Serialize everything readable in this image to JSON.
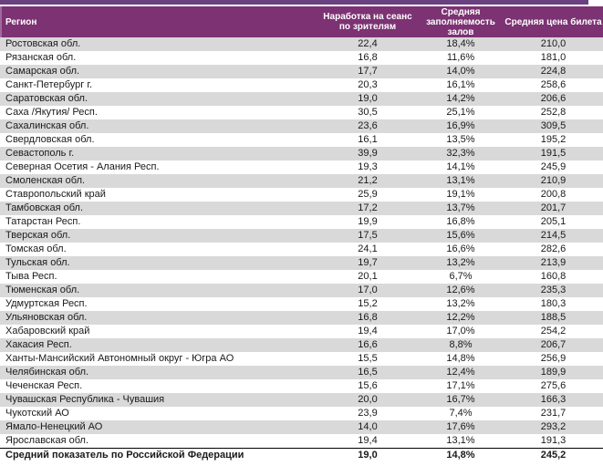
{
  "table": {
    "columns": [
      "Регион",
      "Наработка на сеанс по зрителям",
      "Средняя заполняемость залов",
      "Средняя цена билета"
    ],
    "rows": [
      {
        "region": "Ростовская обл.",
        "per_session": "22,4",
        "occupancy": "18,4%",
        "price": "210,0"
      },
      {
        "region": "Рязанская обл.",
        "per_session": "16,8",
        "occupancy": "11,6%",
        "price": "181,0"
      },
      {
        "region": "Самарская обл.",
        "per_session": "17,7",
        "occupancy": "14,0%",
        "price": "224,8"
      },
      {
        "region": "Санкт-Петербург г.",
        "per_session": "20,3",
        "occupancy": "16,1%",
        "price": "258,6"
      },
      {
        "region": "Саратовская обл.",
        "per_session": "19,0",
        "occupancy": "14,2%",
        "price": "206,6"
      },
      {
        "region": "Саха /Якутия/ Респ.",
        "per_session": "30,5",
        "occupancy": "25,1%",
        "price": "252,8"
      },
      {
        "region": "Сахалинская обл.",
        "per_session": "23,6",
        "occupancy": "16,9%",
        "price": "309,5"
      },
      {
        "region": "Свердловская обл.",
        "per_session": "16,1",
        "occupancy": "13,5%",
        "price": "195,2"
      },
      {
        "region": "Севастополь г.",
        "per_session": "39,9",
        "occupancy": "32,3%",
        "price": "191,5"
      },
      {
        "region": "Северная Осетия - Алания Респ.",
        "per_session": "19,3",
        "occupancy": "14,1%",
        "price": "245,9"
      },
      {
        "region": "Смоленская обл.",
        "per_session": "21,2",
        "occupancy": "13,1%",
        "price": "210,9"
      },
      {
        "region": "Ставропольский край",
        "per_session": "25,9",
        "occupancy": "19,1%",
        "price": "200,8"
      },
      {
        "region": "Тамбовская обл.",
        "per_session": "17,2",
        "occupancy": "13,7%",
        "price": "201,7"
      },
      {
        "region": "Татарстан Респ.",
        "per_session": "19,9",
        "occupancy": "16,8%",
        "price": "205,1"
      },
      {
        "region": "Тверская обл.",
        "per_session": "17,5",
        "occupancy": "15,6%",
        "price": "214,5"
      },
      {
        "region": "Томская обл.",
        "per_session": "24,1",
        "occupancy": "16,6%",
        "price": "282,6"
      },
      {
        "region": "Тульская обл.",
        "per_session": "19,7",
        "occupancy": "13,2%",
        "price": "213,9"
      },
      {
        "region": "Тыва Респ.",
        "per_session": "20,1",
        "occupancy": "6,7%",
        "price": "160,8"
      },
      {
        "region": "Тюменская обл.",
        "per_session": "17,0",
        "occupancy": "12,6%",
        "price": "235,3"
      },
      {
        "region": "Удмуртская Респ.",
        "per_session": "15,2",
        "occupancy": "13,2%",
        "price": "180,3"
      },
      {
        "region": "Ульяновская обл.",
        "per_session": "16,8",
        "occupancy": "12,2%",
        "price": "188,5"
      },
      {
        "region": "Хабаровский край",
        "per_session": "19,4",
        "occupancy": "17,0%",
        "price": "254,2"
      },
      {
        "region": "Хакасия Респ.",
        "per_session": "16,6",
        "occupancy": "8,8%",
        "price": "206,7"
      },
      {
        "region": "Ханты-Мансийский Автономный округ - Югра АО",
        "per_session": "15,5",
        "occupancy": "14,8%",
        "price": "256,9"
      },
      {
        "region": "Челябинская обл.",
        "per_session": "16,5",
        "occupancy": "12,4%",
        "price": "189,9"
      },
      {
        "region": "Чеченская Респ.",
        "per_session": "15,6",
        "occupancy": "17,1%",
        "price": "275,6"
      },
      {
        "region": "Чувашская Республика - Чувашия",
        "per_session": "20,0",
        "occupancy": "16,7%",
        "price": "166,3"
      },
      {
        "region": "Чукотский АО",
        "per_session": "23,9",
        "occupancy": "7,4%",
        "price": "231,7"
      },
      {
        "region": "Ямало-Ненецкий АО",
        "per_session": "14,0",
        "occupancy": "17,6%",
        "price": "293,2"
      },
      {
        "region": "Ярославская обл.",
        "per_session": "19,4",
        "occupancy": "13,1%",
        "price": "191,3"
      }
    ],
    "summary_row": {
      "region": "Средний показатель по Российской Федерации",
      "per_session": "19,0",
      "occupancy": "14,8%",
      "price": "245,2"
    }
  },
  "colors": {
    "top_strip": "#694080",
    "header_bg": "#7C3273",
    "header_text": "#FFFFFF",
    "alt_row_bg": "#D9D9D9",
    "row_bg": "#FFFFFF",
    "text": "#1A1A1A",
    "summary_border": "#000000"
  }
}
